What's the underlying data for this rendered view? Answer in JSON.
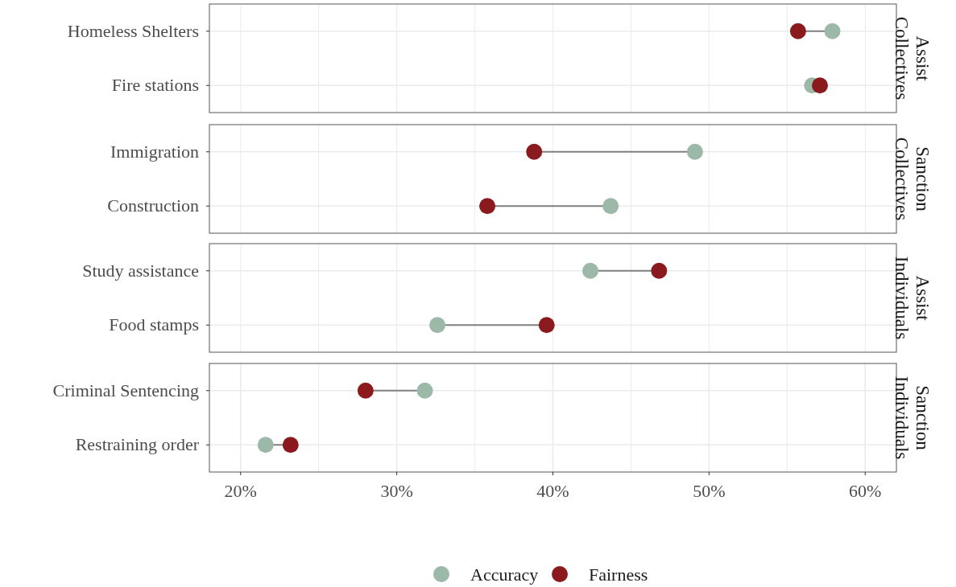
{
  "chart_data": [
    {
      "type": "scatter",
      "title": "Assist Collectives",
      "orientation": "horizontal",
      "categories": [
        "Homeless Shelters",
        "Fire stations"
      ],
      "series": [
        {
          "color": "#9bb8a8",
          "values": [
            57.9,
            56.6
          ]
        },
        {
          "color": "#8b1a1f",
          "values": [
            55.7,
            57.1
          ]
        }
      ],
      "xlim": [
        18,
        62
      ],
      "xticks": [
        {
          "value": 20,
          "label": null
        },
        {
          "value": 25,
          "label": null
        },
        {
          "value": 30,
          "label": null
        },
        {
          "value": 35,
          "label": null
        },
        {
          "value": 40,
          "label": null
        },
        {
          "value": 45,
          "label": null
        },
        {
          "value": 50,
          "label": null
        },
        {
          "value": 55,
          "label": null
        },
        {
          "value": 60,
          "label": null
        }
      ],
      "grid": true,
      "marker": "circle",
      "tick_labels": "y"
    },
    {
      "type": "scatter",
      "title": "Sanction Collectives",
      "orientation": "horizontal",
      "categories": [
        "Immigration",
        "Construction"
      ],
      "series": [
        {
          "color": "#9bb8a8",
          "values": [
            49.1,
            43.7
          ]
        },
        {
          "color": "#8b1a1f",
          "values": [
            38.8,
            35.8
          ]
        }
      ],
      "xlim": [
        18,
        62
      ],
      "xticks": [
        {
          "value": 20,
          "label": null
        },
        {
          "value": 25,
          "label": null
        },
        {
          "value": 30,
          "label": null
        },
        {
          "value": 35,
          "label": null
        },
        {
          "value": 40,
          "label": null
        },
        {
          "value": 45,
          "label": null
        },
        {
          "value": 50,
          "label": null
        },
        {
          "value": 55,
          "label": null
        },
        {
          "value": 60,
          "label": null
        }
      ],
      "grid": true,
      "marker": "circle",
      "tick_labels": "y"
    },
    {
      "type": "scatter",
      "title": "Assist Individuals",
      "orientation": "horizontal",
      "categories": [
        "Study assistance",
        "Food stamps"
      ],
      "series": [
        {
          "color": "#9bb8a8",
          "values": [
            42.4,
            32.6
          ]
        },
        {
          "color": "#8b1a1f",
          "values": [
            46.8,
            39.6
          ]
        }
      ],
      "xlim": [
        18,
        62
      ],
      "xticks": [
        {
          "value": 20,
          "label": null
        },
        {
          "value": 25,
          "label": null
        },
        {
          "value": 30,
          "label": null
        },
        {
          "value": 35,
          "label": null
        },
        {
          "value": 40,
          "label": null
        },
        {
          "value": 45,
          "label": null
        },
        {
          "value": 50,
          "label": null
        },
        {
          "value": 55,
          "label": null
        },
        {
          "value": 60,
          "label": null
        }
      ],
      "grid": true,
      "marker": "circle",
      "tick_labels": "y"
    },
    {
      "type": "scatter",
      "title": "Sanction Individuals",
      "orientation": "horizontal",
      "categories": [
        "Criminal Sentencing",
        "Restraining order"
      ],
      "series": [
        {
          "name": "Accuracy",
          "color": "#9bb8a8",
          "values": [
            31.8,
            21.6
          ]
        },
        {
          "name": "Fairness",
          "color": "#8b1a1f",
          "values": [
            28.0,
            23.2
          ]
        }
      ],
      "xlim": [
        18,
        62
      ],
      "xticks": [
        {
          "value": 20,
          "label": "20%"
        },
        {
          "value": 25,
          "label": null
        },
        {
          "value": 30,
          "label": "30%"
        },
        {
          "value": 35,
          "label": null
        },
        {
          "value": 40,
          "label": "40%"
        },
        {
          "value": 45,
          "label": null
        },
        {
          "value": 50,
          "label": "50%"
        },
        {
          "value": 55,
          "label": null
        },
        {
          "value": 60,
          "label": "60%"
        }
      ],
      "grid": true,
      "marker": "circle",
      "legend": "bottom"
    }
  ]
}
